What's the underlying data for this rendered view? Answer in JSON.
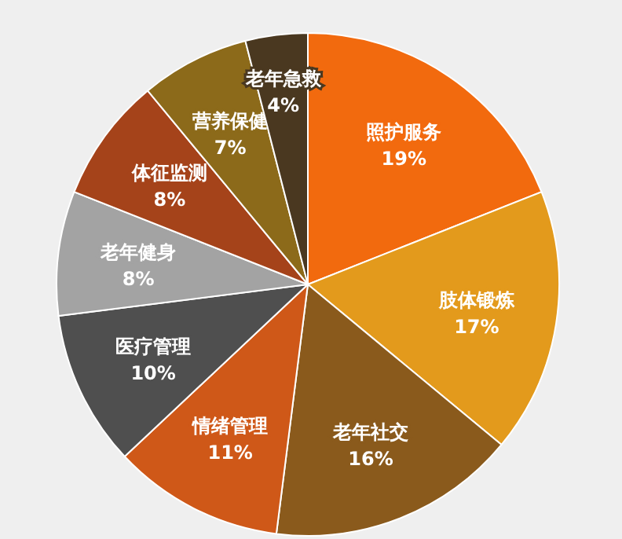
{
  "chart_data": {
    "type": "pie",
    "categories": [
      "照护服务",
      "肢体锻炼",
      "老年社交",
      "情绪管理",
      "医疗管理",
      "老年健身",
      "体征监测",
      "营养保健",
      "老年急救"
    ],
    "values": [
      19,
      17,
      16,
      11,
      10,
      8,
      8,
      7,
      4
    ],
    "value_labels": [
      "19%",
      "17%",
      "16%",
      "11%",
      "10%",
      "8%",
      "8%",
      "7%",
      "4%"
    ],
    "colors": [
      "#f26a0e",
      "#e39a1c",
      "#8a5a1c",
      "#cf5818",
      "#4f4f4f",
      "#a3a3a3",
      "#a5431a",
      "#8c6a1a",
      "#4a3820"
    ]
  }
}
